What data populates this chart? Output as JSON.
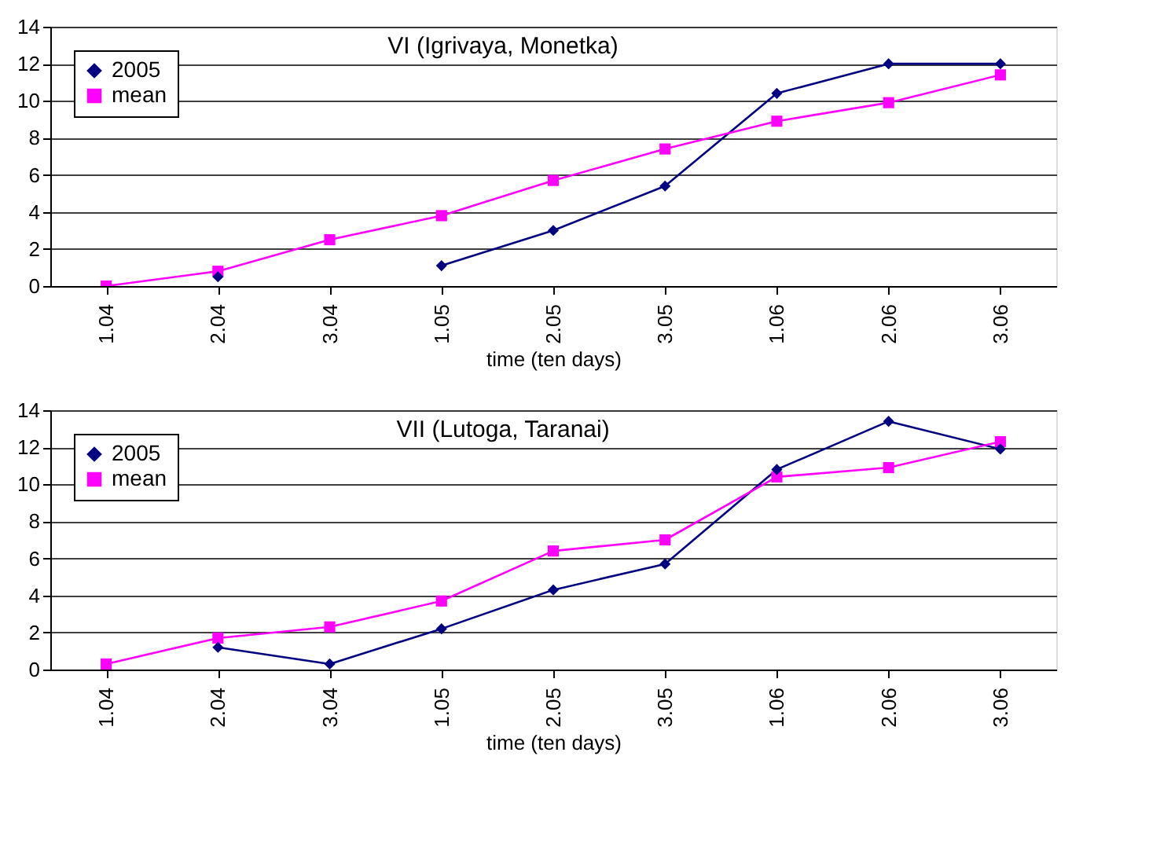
{
  "chart_data": [
    {
      "type": "line",
      "title": "VI (Igrivaya, Monetka)",
      "xlabel": "time (ten days)",
      "categories": [
        "1.04",
        "2.04",
        "3.04",
        "1.05",
        "2.05",
        "3.05",
        "1.06",
        "2.06",
        "3.06"
      ],
      "ylim": [
        0,
        14
      ],
      "yticks": [
        0,
        2,
        4,
        6,
        8,
        10,
        12,
        14
      ],
      "grid": "y",
      "legend": "top left",
      "series": [
        {
          "name": "2005",
          "color": "#000080",
          "marker": "diamond",
          "values": [
            null,
            0.5,
            null,
            1.1,
            3.0,
            5.4,
            10.4,
            12.0,
            12.0
          ]
        },
        {
          "name": "mean",
          "color": "#ff00ff",
          "marker": "square",
          "values": [
            0,
            0.8,
            2.5,
            3.8,
            5.7,
            7.4,
            8.9,
            9.9,
            11.4
          ]
        }
      ]
    },
    {
      "type": "line",
      "title": "VII (Lutoga, Taranai)",
      "xlabel": "time (ten days)",
      "categories": [
        "1.04",
        "2.04",
        "3.04",
        "1.05",
        "2.05",
        "3.05",
        "1.06",
        "2.06",
        "3.06"
      ],
      "ylim": [
        0,
        14
      ],
      "yticks": [
        0,
        2,
        4,
        6,
        8,
        10,
        12,
        14
      ],
      "grid": "y",
      "legend": "top left",
      "series": [
        {
          "name": "2005",
          "color": "#000080",
          "marker": "diamond",
          "values": [
            null,
            1.2,
            0.3,
            2.2,
            4.3,
            5.7,
            10.8,
            13.4,
            11.9
          ]
        },
        {
          "name": "mean",
          "color": "#ff00ff",
          "marker": "square",
          "values": [
            0.3,
            1.7,
            2.3,
            3.7,
            6.4,
            7.0,
            10.4,
            10.9,
            12.3
          ]
        }
      ]
    }
  ]
}
